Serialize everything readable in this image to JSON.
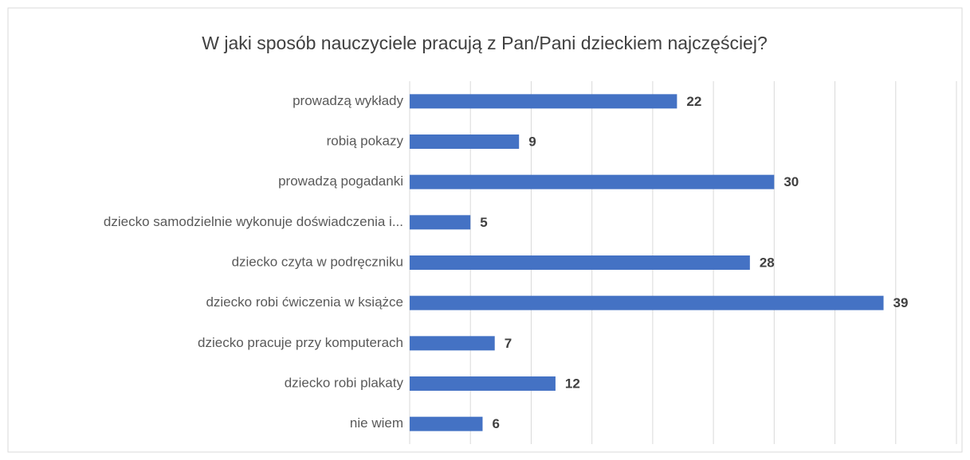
{
  "chart_data": {
    "type": "bar",
    "orientation": "horizontal",
    "title": "W jaki sposób nauczyciele pracują z Pan/Pani dzieckiem najczęściej?",
    "categories": [
      "prowadzą wykłady",
      "robią pokazy",
      "prowadzą pogadanki",
      "dziecko samodzielnie wykonuje doświadczenia i...",
      "dziecko czyta w podręczniku",
      "dziecko robi ćwiczenia w książce",
      "dziecko pracuje przy komputerach",
      "dziecko robi plakaty",
      "nie wiem"
    ],
    "values": [
      22,
      9,
      30,
      5,
      28,
      39,
      7,
      12,
      6
    ],
    "color": "#4472c4",
    "xlim": [
      0,
      45
    ],
    "xticks": [
      0,
      5,
      10,
      15,
      20,
      25,
      30,
      35,
      40,
      45
    ],
    "grid": true
  }
}
